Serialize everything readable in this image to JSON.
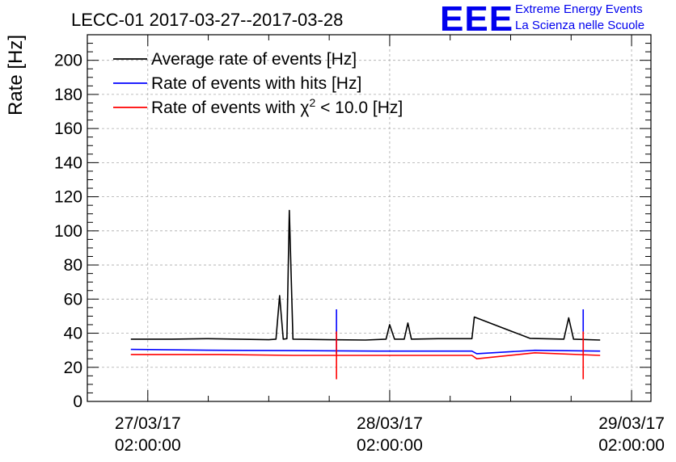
{
  "chart_data": {
    "type": "line",
    "title": "LECC-01 2017-03-27--2017-03-28",
    "ylabel": "Rate [Hz]",
    "xlabel": "",
    "ylim": [
      0,
      215
    ],
    "xlim": [
      -0.25,
      2.08
    ],
    "x_unit": "days since 27/03/17 02:00:00",
    "yticks": [
      0,
      20,
      40,
      60,
      80,
      100,
      120,
      140,
      160,
      180,
      200
    ],
    "xticks": [
      {
        "x": 0,
        "line1": "27/03/17",
        "line2": "02:00:00"
      },
      {
        "x": 1,
        "line1": "28/03/17",
        "line2": "02:00:00"
      },
      {
        "x": 2,
        "line1": "29/03/17",
        "line2": "02:00:00"
      }
    ],
    "grid": true,
    "legend_position": "top-left",
    "series": [
      {
        "name": "Average rate of events [Hz]",
        "color": "#000000",
        "points": [
          [
            -0.07,
            36.5
          ],
          [
            0.1,
            36.5
          ],
          [
            0.25,
            36.8
          ],
          [
            0.4,
            36.4
          ],
          [
            0.5,
            36.2
          ],
          [
            0.53,
            36.5
          ],
          [
            0.545,
            62
          ],
          [
            0.56,
            36.5
          ],
          [
            0.575,
            36.8
          ],
          [
            0.585,
            112
          ],
          [
            0.6,
            36.5
          ],
          [
            0.75,
            36.2
          ],
          [
            0.9,
            36
          ],
          [
            0.985,
            36.5
          ],
          [
            1.0,
            45
          ],
          [
            1.02,
            36.5
          ],
          [
            1.06,
            36.5
          ],
          [
            1.075,
            46
          ],
          [
            1.09,
            36.5
          ],
          [
            1.2,
            36.8
          ],
          [
            1.34,
            36.8
          ],
          [
            1.35,
            49.5
          ],
          [
            1.58,
            37
          ],
          [
            1.72,
            36.5
          ],
          [
            1.74,
            49
          ],
          [
            1.76,
            36.5
          ],
          [
            1.87,
            36
          ]
        ]
      },
      {
        "name": "Rate of events with hits [Hz]",
        "color": "#0000ff",
        "points": [
          [
            -0.07,
            30.5
          ],
          [
            0.3,
            30
          ],
          [
            0.6,
            29.8
          ],
          [
            0.95,
            29.5
          ],
          [
            1.34,
            29.5
          ],
          [
            1.36,
            28
          ],
          [
            1.6,
            30
          ],
          [
            1.87,
            29.5
          ]
        ]
      },
      {
        "name": "Rate of events with χ² < 10.0 [Hz]",
        "color": "#ff0000",
        "points": [
          [
            -0.07,
            27.5
          ],
          [
            0.3,
            27.5
          ],
          [
            0.6,
            27
          ],
          [
            0.95,
            27
          ],
          [
            1.34,
            27
          ],
          [
            1.36,
            25
          ],
          [
            1.6,
            28.5
          ],
          [
            1.87,
            27
          ]
        ]
      }
    ],
    "spikes": [
      {
        "x": 0.78,
        "color": "#0000ff",
        "y0": 28,
        "y1": 54
      },
      {
        "x": 0.78,
        "color": "#ff0000",
        "y0": 13,
        "y1": 41
      },
      {
        "x": 1.8,
        "color": "#0000ff",
        "y0": 28,
        "y1": 54
      },
      {
        "x": 1.8,
        "color": "#ff0000",
        "y0": 13,
        "y1": 41
      }
    ]
  },
  "legend": {
    "entries": [
      {
        "label": "Average rate of events [Hz]",
        "color": "#000000"
      },
      {
        "label": "Rate of events with hits [Hz]",
        "color": "#0000ff"
      },
      {
        "label_pre": "Rate of events with χ",
        "label_sup": "2",
        "label_post": " < 10.0 [Hz]",
        "color": "#ff0000"
      }
    ]
  },
  "logo": {
    "mark": "EEE",
    "line1": "Extreme Energy Events",
    "line2": "La Scienza nelle Scuole",
    "color": "#0000ee"
  }
}
